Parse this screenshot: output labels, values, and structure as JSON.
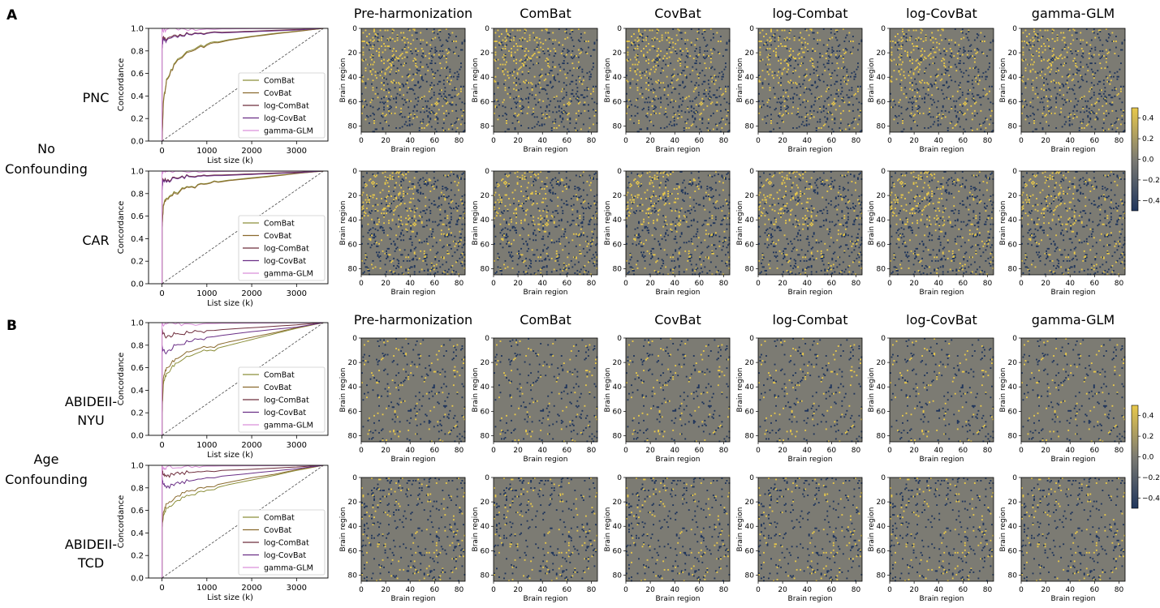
{
  "panels": [
    {
      "letter": "A",
      "group_line1": "No",
      "group_line2": "Confounding",
      "rows": [
        {
          "label_line1": "PNC",
          "label_line2": ""
        },
        {
          "label_line1": "CAR",
          "label_line2": ""
        }
      ]
    },
    {
      "letter": "B",
      "group_line1": "Age",
      "group_line2": "Confounding",
      "rows": [
        {
          "label_line1": "ABIDEII-",
          "label_line2": "NYU"
        },
        {
          "label_line1": "ABIDEII-",
          "label_line2": "TCD"
        }
      ]
    }
  ],
  "colors": {
    "ComBat": "#8c8f3a",
    "CovBat": "#8a6a2e",
    "log-ComBat": "#6e2d3c",
    "log-CovBat": "#6a2f86",
    "gamma-GLM": "#d98fd9",
    "matrix_bg": "#7c7b73",
    "pos": "#e8c84a",
    "neg": "#1f355c"
  },
  "chart_data": [
    {
      "type": "line",
      "panel": "A",
      "dataset": "PNC",
      "xlabel": "List size (k)",
      "ylabel": "Concordance",
      "xlim": [
        -300,
        3700
      ],
      "ylim": [
        0,
        1.0
      ],
      "xticks": [
        "0",
        "1000",
        "2000",
        "3000"
      ],
      "yticks": [
        "0.0",
        "0.2",
        "0.4",
        "0.6",
        "0.8",
        "1.0"
      ],
      "legend": [
        "ComBat",
        "CovBat",
        "log-ComBat",
        "log-CovBat",
        "gamma-GLM"
      ],
      "legend_position": "lower-right",
      "series": [
        {
          "name": "ComBat",
          "x": [
            0,
            30,
            100,
            300,
            600,
            1000,
            1500,
            2000,
            2500,
            3000,
            3600
          ],
          "y": [
            0.0,
            0.35,
            0.55,
            0.7,
            0.8,
            0.86,
            0.9,
            0.93,
            0.955,
            0.975,
            1.0
          ]
        },
        {
          "name": "CovBat",
          "x": [
            0,
            30,
            100,
            300,
            600,
            1000,
            1500,
            2000,
            2500,
            3000,
            3600
          ],
          "y": [
            0.0,
            0.33,
            0.54,
            0.69,
            0.79,
            0.85,
            0.895,
            0.925,
            0.95,
            0.972,
            1.0
          ]
        },
        {
          "name": "log-ComBat",
          "x": [
            0,
            20,
            100,
            300,
            600,
            1000,
            2000,
            3000,
            3600
          ],
          "y": [
            0.85,
            0.92,
            0.9,
            0.94,
            0.95,
            0.96,
            0.975,
            0.99,
            1.0
          ]
        },
        {
          "name": "log-CovBat",
          "x": [
            0,
            20,
            100,
            300,
            600,
            1000,
            2000,
            3000,
            3600
          ],
          "y": [
            0.82,
            0.9,
            0.89,
            0.93,
            0.945,
            0.955,
            0.97,
            0.985,
            1.0
          ]
        },
        {
          "name": "gamma-GLM",
          "x": [
            0,
            20,
            100,
            500,
            1000,
            2000,
            3000,
            3600
          ],
          "y": [
            1.0,
            0.98,
            0.99,
            0.995,
            0.995,
            0.997,
            0.998,
            1.0
          ]
        }
      ]
    },
    {
      "type": "line",
      "panel": "A",
      "dataset": "CAR",
      "xlabel": "List size (k)",
      "ylabel": "Concordance",
      "xlim": [
        -300,
        3700
      ],
      "ylim": [
        0,
        1.0
      ],
      "xticks": [
        "0",
        "1000",
        "2000",
        "3000"
      ],
      "yticks": [
        "0.0",
        "0.2",
        "0.4",
        "0.6",
        "0.8",
        "1.0"
      ],
      "legend": [
        "ComBat",
        "CovBat",
        "log-ComBat",
        "log-CovBat",
        "gamma-GLM"
      ],
      "legend_position": "lower-right",
      "series": [
        {
          "name": "ComBat",
          "x": [
            0,
            30,
            100,
            300,
            600,
            1000,
            1500,
            2000,
            2500,
            3000,
            3600
          ],
          "y": [
            0.5,
            0.7,
            0.76,
            0.81,
            0.86,
            0.89,
            0.92,
            0.94,
            0.96,
            0.98,
            1.0
          ]
        },
        {
          "name": "CovBat",
          "x": [
            0,
            30,
            100,
            300,
            600,
            1000,
            1500,
            2000,
            2500,
            3000,
            3600
          ],
          "y": [
            0.5,
            0.69,
            0.75,
            0.8,
            0.855,
            0.885,
            0.915,
            0.935,
            0.955,
            0.978,
            1.0
          ]
        },
        {
          "name": "log-ComBat",
          "x": [
            0,
            20,
            100,
            300,
            600,
            1000,
            2000,
            3000,
            3600
          ],
          "y": [
            0.85,
            0.93,
            0.91,
            0.94,
            0.955,
            0.96,
            0.975,
            0.99,
            1.0
          ]
        },
        {
          "name": "log-CovBat",
          "x": [
            0,
            20,
            100,
            300,
            600,
            1000,
            2000,
            3000,
            3600
          ],
          "y": [
            0.83,
            0.92,
            0.9,
            0.935,
            0.95,
            0.955,
            0.97,
            0.985,
            1.0
          ]
        },
        {
          "name": "gamma-GLM",
          "x": [
            0,
            20,
            100,
            500,
            1000,
            2000,
            3000,
            3600
          ],
          "y": [
            1.0,
            0.99,
            0.995,
            0.995,
            0.996,
            0.998,
            0.999,
            1.0
          ]
        }
      ]
    },
    {
      "type": "line",
      "panel": "B",
      "dataset": "ABIDEII-NYU",
      "xlabel": "List size (k)",
      "ylabel": "Concordance",
      "xlim": [
        -300,
        3700
      ],
      "ylim": [
        0,
        1.0
      ],
      "xticks": [
        "0",
        "1000",
        "2000",
        "3000"
      ],
      "yticks": [
        "0.0",
        "0.2",
        "0.4",
        "0.6",
        "0.8",
        "1.0"
      ],
      "legend": [
        "ComBat",
        "CovBat",
        "log-ComBat",
        "log-CovBat",
        "gamma-GLM"
      ],
      "legend_position": "lower-right",
      "series": [
        {
          "name": "ComBat",
          "x": [
            0,
            30,
            100,
            300,
            600,
            1000,
            1500,
            2000,
            2500,
            3000,
            3600
          ],
          "y": [
            0.2,
            0.45,
            0.55,
            0.64,
            0.7,
            0.75,
            0.8,
            0.85,
            0.9,
            0.95,
            1.0
          ]
        },
        {
          "name": "CovBat",
          "x": [
            0,
            30,
            100,
            300,
            600,
            1000,
            1500,
            2000,
            2500,
            3000,
            3600
          ],
          "y": [
            0.2,
            0.5,
            0.6,
            0.68,
            0.74,
            0.78,
            0.83,
            0.87,
            0.91,
            0.955,
            1.0
          ]
        },
        {
          "name": "log-ComBat",
          "x": [
            0,
            20,
            100,
            300,
            600,
            1000,
            2000,
            3000,
            3600
          ],
          "y": [
            0.95,
            0.9,
            0.87,
            0.9,
            0.91,
            0.93,
            0.955,
            0.98,
            1.0
          ]
        },
        {
          "name": "log-CovBat",
          "x": [
            0,
            20,
            100,
            300,
            600,
            1000,
            2000,
            3000,
            3600
          ],
          "y": [
            0.8,
            0.75,
            0.73,
            0.8,
            0.83,
            0.87,
            0.92,
            0.96,
            1.0
          ]
        },
        {
          "name": "gamma-GLM",
          "x": [
            0,
            20,
            100,
            500,
            1000,
            2000,
            3000,
            3600
          ],
          "y": [
            1.0,
            0.98,
            0.99,
            0.99,
            0.993,
            0.996,
            0.998,
            1.0
          ]
        }
      ]
    },
    {
      "type": "line",
      "panel": "B",
      "dataset": "ABIDEII-TCD",
      "xlabel": "List size (k)",
      "ylabel": "Concordance",
      "xlim": [
        -300,
        3700
      ],
      "ylim": [
        0,
        1.0
      ],
      "xticks": [
        "0",
        "1000",
        "2000",
        "3000"
      ],
      "yticks": [
        "0.0",
        "0.2",
        "0.4",
        "0.6",
        "0.8",
        "1.0"
      ],
      "legend": [
        "ComBat",
        "CovBat",
        "log-ComBat",
        "log-CovBat",
        "gamma-GLM"
      ],
      "legend_position": "lower-right",
      "series": [
        {
          "name": "ComBat",
          "x": [
            0,
            30,
            100,
            300,
            600,
            1000,
            1500,
            2000,
            2500,
            3000,
            3600
          ],
          "y": [
            0.45,
            0.55,
            0.62,
            0.68,
            0.73,
            0.78,
            0.83,
            0.87,
            0.91,
            0.955,
            1.0
          ]
        },
        {
          "name": "CovBat",
          "x": [
            0,
            30,
            100,
            300,
            600,
            1000,
            1500,
            2000,
            2500,
            3000,
            3600
          ],
          "y": [
            0.45,
            0.58,
            0.66,
            0.72,
            0.77,
            0.81,
            0.85,
            0.89,
            0.92,
            0.96,
            1.0
          ]
        },
        {
          "name": "log-ComBat",
          "x": [
            0,
            20,
            100,
            300,
            600,
            1000,
            2000,
            3000,
            3600
          ],
          "y": [
            1.0,
            0.92,
            0.9,
            0.93,
            0.935,
            0.95,
            0.965,
            0.985,
            1.0
          ]
        },
        {
          "name": "log-CovBat",
          "x": [
            0,
            20,
            100,
            300,
            600,
            1000,
            2000,
            3000,
            3600
          ],
          "y": [
            0.9,
            0.84,
            0.8,
            0.84,
            0.86,
            0.89,
            0.93,
            0.97,
            1.0
          ]
        },
        {
          "name": "gamma-GLM",
          "x": [
            0,
            20,
            100,
            500,
            1000,
            2000,
            3000,
            3600
          ],
          "y": [
            1.0,
            0.97,
            0.985,
            0.99,
            0.993,
            0.996,
            0.998,
            1.0
          ]
        }
      ]
    },
    {
      "type": "heatmap",
      "panel": "A",
      "titles": [
        "Pre-harmonization",
        "ComBat",
        "CovBat",
        "log-Combat",
        "log-CovBat",
        "gamma-GLM"
      ],
      "datasets": [
        "PNC",
        "CAR"
      ],
      "xlabel": "Brain region",
      "ylabel": "Brain region",
      "xlim": [
        0,
        85
      ],
      "ylim": [
        85,
        0
      ],
      "xticks": [
        "0",
        "20",
        "40",
        "60",
        "80"
      ],
      "yticks": [
        "0",
        "20",
        "40",
        "60",
        "80"
      ],
      "colorbar": {
        "ticks": [
          "0.4",
          "0.2",
          "0.0",
          "−0.2",
          "−0.4"
        ],
        "range": [
          -0.5,
          0.5
        ]
      }
    },
    {
      "type": "heatmap",
      "panel": "B",
      "titles": [
        "Pre-harmonization",
        "ComBat",
        "CovBat",
        "log-Combat",
        "log-CovBat",
        "gamma-GLM"
      ],
      "datasets": [
        "ABIDEII-NYU",
        "ABIDEII-TCD"
      ],
      "xlabel": "Brain region",
      "ylabel": "Brain region",
      "xlim": [
        0,
        85
      ],
      "ylim": [
        85,
        0
      ],
      "xticks": [
        "0",
        "20",
        "40",
        "60",
        "80"
      ],
      "yticks": [
        "0",
        "20",
        "40",
        "60",
        "80"
      ],
      "colorbar": {
        "ticks": [
          "0.4",
          "0.2",
          "0.0",
          "−0.2",
          "−0.4"
        ],
        "range": [
          -0.5,
          0.5
        ]
      }
    }
  ]
}
